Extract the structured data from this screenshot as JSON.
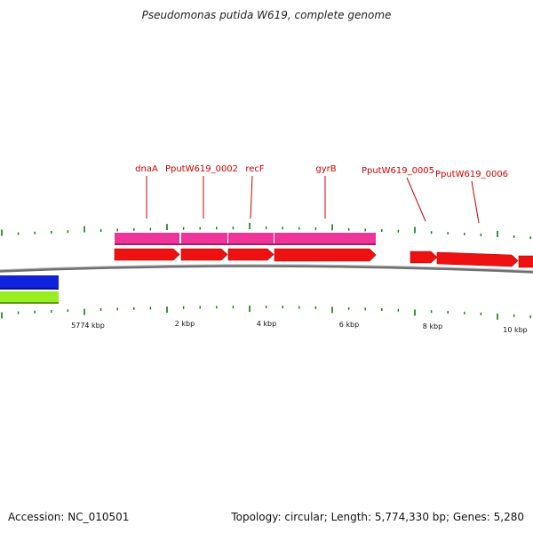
{
  "title": "Pseudomonas putida W619, complete genome",
  "accession_label": "Accession: NC_010501",
  "summary_label": "Topology: circular; Length: 5,774,330 bp; Genes: 5,280",
  "colors": {
    "background": "#ffffff",
    "backbone": "#808080",
    "cds": "#ee1111",
    "gene": "#ee3399",
    "strand_blue": "#1122dd",
    "strand_green": "#99ee22",
    "tick": "#117711",
    "label": "#cc0000"
  },
  "genes": [
    {
      "name": "dnaA"
    },
    {
      "name": "PputW619_0002"
    },
    {
      "name": "recF"
    },
    {
      "name": "gyrB"
    },
    {
      "name": "PputW619_0005"
    },
    {
      "name": "PputW619_0006"
    }
  ],
  "ticks": [
    "5774 kbp",
    "2 kbp",
    "4 kbp",
    "6 kbp",
    "8 kbp",
    "10 kbp"
  ]
}
